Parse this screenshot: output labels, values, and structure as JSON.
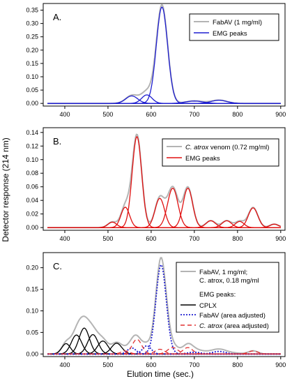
{
  "ylabel": "Detector response (214 nm)",
  "xlabel": "Elution time (sec.)",
  "colors": {
    "gray": "#b4b4b4",
    "blue": "#1f1fd0",
    "red": "#e01010",
    "black": "#000000",
    "redDash": "#e03030"
  },
  "chart_data": [
    {
      "type": "line",
      "panel_label": "A.",
      "xlim": [
        350,
        910
      ],
      "ylim": [
        -0.01,
        0.375
      ],
      "xticks": [
        400,
        500,
        600,
        700,
        800,
        900
      ],
      "yticks": [
        0.0,
        0.05,
        0.1,
        0.15,
        0.2,
        0.25,
        0.3,
        0.35
      ],
      "ytick_labels": [
        "0.00",
        "0.05",
        "0.10",
        "0.15",
        "0.20",
        "0.25",
        "0.30",
        "0.35"
      ],
      "legend": [
        "FabAV (1 mg/ml)",
        "EMG peaks"
      ],
      "legend_position": "top-right",
      "x_range": [
        360,
        900
      ],
      "observed": {
        "name": "FabAV (1 mg/ml)",
        "color": "#b4b4b4",
        "extra": [
          [
            585,
            0.01,
            18
          ]
        ]
      },
      "peaks": [
        {
          "c": 625,
          "h": 0.362,
          "w": 13,
          "color": "#1f1fd0"
        },
        {
          "c": 555,
          "h": 0.028,
          "w": 14,
          "color": "#1f1fd0"
        },
        {
          "c": 590,
          "h": 0.032,
          "w": 12,
          "color": "#1f1fd0"
        },
        {
          "c": 700,
          "h": 0.009,
          "w": 20,
          "color": "#1f1fd0"
        },
        {
          "c": 757,
          "h": 0.012,
          "w": 18,
          "color": "#1f1fd0"
        }
      ],
      "peaks_name": "EMG peaks"
    },
    {
      "type": "line",
      "panel_label": "B.",
      "xlim": [
        350,
        910
      ],
      "ylim": [
        -0.004,
        0.147
      ],
      "xticks": [
        400,
        500,
        600,
        700,
        800,
        900
      ],
      "yticks": [
        0.0,
        0.02,
        0.04,
        0.06,
        0.08,
        0.1,
        0.12,
        0.14
      ],
      "ytick_labels": [
        "0.00",
        "0.02",
        "0.04",
        "0.06",
        "0.08",
        "0.10",
        "0.12",
        "0.14"
      ],
      "legend_italic": "C. atrox",
      "legend_rest": " venom (0.72 mg/ml)",
      "legend": [
        "C. atrox venom (0.72 mg/ml)",
        "EMG peaks"
      ],
      "legend_position": "top-right",
      "x_range": [
        360,
        900
      ],
      "observed": {
        "name": "C. atrox venom (0.72 mg/ml)",
        "color": "#b4b4b4",
        "extra": []
      },
      "peaks": [
        {
          "c": 510,
          "h": 0.008,
          "w": 10,
          "color": "#e01010"
        },
        {
          "c": 540,
          "h": 0.03,
          "w": 10,
          "color": "#e01010"
        },
        {
          "c": 567,
          "h": 0.134,
          "w": 11,
          "color": "#e01010"
        },
        {
          "c": 620,
          "h": 0.043,
          "w": 11,
          "color": "#e01010"
        },
        {
          "c": 650,
          "h": 0.058,
          "w": 12,
          "color": "#e01010"
        },
        {
          "c": 685,
          "h": 0.058,
          "w": 11,
          "color": "#e01010"
        },
        {
          "c": 738,
          "h": 0.01,
          "w": 11,
          "color": "#e01010"
        },
        {
          "c": 775,
          "h": 0.01,
          "w": 11,
          "color": "#e01010"
        },
        {
          "c": 805,
          "h": 0.009,
          "w": 10,
          "color": "#e01010"
        },
        {
          "c": 836,
          "h": 0.029,
          "w": 11,
          "color": "#e01010"
        },
        {
          "c": 885,
          "h": 0.005,
          "w": 10,
          "color": "#e01010"
        }
      ],
      "peaks_name": "EMG peaks"
    },
    {
      "type": "line",
      "panel_label": "C.",
      "xlim": [
        350,
        910
      ],
      "ylim": [
        -0.006,
        0.235
      ],
      "xticks": [
        400,
        500,
        600,
        700,
        800,
        900
      ],
      "yticks": [
        0.0,
        0.05,
        0.1,
        0.15,
        0.2
      ],
      "ytick_labels": [
        "0.00",
        "0.05",
        "0.10",
        "0.15",
        "0.20"
      ],
      "legend": [
        "FabAV, 1 mg/ml;",
        "C. atrox, 0.18 mg/ml",
        "EMG peaks:",
        "CPLX",
        "FabAV (area adjusted)",
        "C. atrox (area adjusted)"
      ],
      "legend_position": "right",
      "x_range": [
        360,
        900
      ],
      "observed": {
        "name": "FabAV, 1 mg/ml; C. atrox, 0.18 mg/ml",
        "color": "#b4b4b4",
        "extra": [
          [
            690,
            0.006,
            30
          ],
          [
            760,
            0.005,
            30
          ]
        ]
      },
      "peaks": [
        {
          "c": 403,
          "h": 0.024,
          "w": 10,
          "color": "#000000",
          "style": "solid"
        },
        {
          "c": 427,
          "h": 0.044,
          "w": 12,
          "color": "#000000",
          "style": "solid"
        },
        {
          "c": 445,
          "h": 0.06,
          "w": 12,
          "color": "#000000",
          "style": "solid"
        },
        {
          "c": 465,
          "h": 0.045,
          "w": 12,
          "color": "#000000",
          "style": "solid"
        },
        {
          "c": 488,
          "h": 0.03,
          "w": 12,
          "color": "#000000",
          "style": "solid"
        },
        {
          "c": 520,
          "h": 0.025,
          "w": 12,
          "color": "#000000",
          "style": "solid"
        },
        {
          "c": 555,
          "h": 0.014,
          "w": 10,
          "color": "#1f1fd0",
          "style": "dotted"
        },
        {
          "c": 590,
          "h": 0.019,
          "w": 10,
          "color": "#1f1fd0",
          "style": "dotted"
        },
        {
          "c": 623,
          "h": 0.207,
          "w": 12,
          "color": "#1f1fd0",
          "style": "dotted"
        },
        {
          "c": 700,
          "h": 0.004,
          "w": 15,
          "color": "#1f1fd0",
          "style": "dotted"
        },
        {
          "c": 757,
          "h": 0.006,
          "w": 15,
          "color": "#1f1fd0",
          "style": "dotted"
        },
        {
          "c": 540,
          "h": 0.007,
          "w": 10,
          "color": "#e03030",
          "style": "dashed"
        },
        {
          "c": 567,
          "h": 0.034,
          "w": 11,
          "color": "#e03030",
          "style": "dashed"
        },
        {
          "c": 620,
          "h": 0.011,
          "w": 11,
          "color": "#e03030",
          "style": "dashed"
        },
        {
          "c": 650,
          "h": 0.015,
          "w": 12,
          "color": "#e03030",
          "style": "dashed"
        },
        {
          "c": 685,
          "h": 0.015,
          "w": 11,
          "color": "#e03030",
          "style": "dashed"
        },
        {
          "c": 836,
          "h": 0.007,
          "w": 11,
          "color": "#e03030",
          "style": "dashed"
        }
      ]
    }
  ]
}
